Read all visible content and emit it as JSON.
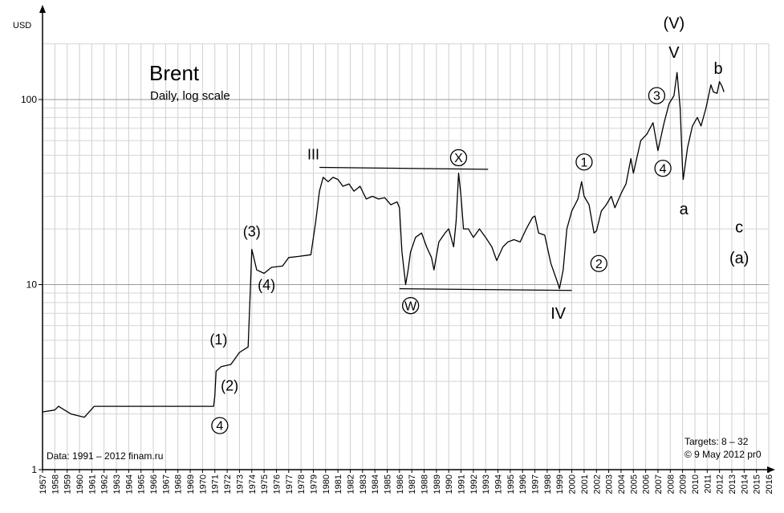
{
  "chart_data": {
    "type": "line",
    "title": "Brent",
    "subtitle": "Daily, log scale",
    "ylabel": "USD",
    "yscale": "log",
    "ylim": [
      1,
      200
    ],
    "xlim": [
      1957,
      2016
    ],
    "y_ticks": [
      1,
      10,
      100
    ],
    "x_ticks": [
      "1957",
      "1958",
      "1959",
      "1960",
      "1961",
      "1962",
      "1963",
      "1964",
      "1965",
      "1966",
      "1967",
      "1968",
      "1969",
      "1970",
      "1971",
      "1972",
      "1973",
      "1974",
      "1975",
      "1976",
      "1977",
      "1978",
      "1979",
      "1980",
      "1981",
      "1982",
      "1983",
      "1984",
      "1985",
      "1986",
      "1987",
      "1988",
      "1989",
      "1990",
      "1991",
      "1992",
      "1993",
      "1994",
      "1995",
      "1996",
      "1997",
      "1998",
      "1999",
      "2000",
      "2001",
      "2002",
      "2003",
      "2004",
      "2005",
      "2006",
      "2007",
      "2008",
      "2009",
      "2010",
      "2011",
      "2012",
      "2013",
      "2014",
      "2015",
      "2016"
    ],
    "grid": true,
    "series": [
      {
        "color": "#000000",
        "points": [
          [
            1957.0,
            2.05
          ],
          [
            1958.0,
            2.1
          ],
          [
            1958.3,
            2.2
          ],
          [
            1959.3,
            2.0
          ],
          [
            1960.4,
            1.92
          ],
          [
            1961.2,
            2.2
          ],
          [
            1962.5,
            2.2
          ],
          [
            1965.0,
            2.2
          ],
          [
            1968.0,
            2.2
          ],
          [
            1970.9,
            2.2
          ],
          [
            1971.0,
            2.5
          ],
          [
            1971.1,
            3.4
          ],
          [
            1971.5,
            3.6
          ],
          [
            1972.3,
            3.7
          ],
          [
            1973.0,
            4.3
          ],
          [
            1973.7,
            4.6
          ],
          [
            1973.9,
            10.0
          ],
          [
            1974.0,
            15.5
          ],
          [
            1974.4,
            12.0
          ],
          [
            1975.0,
            11.5
          ],
          [
            1975.6,
            12.4
          ],
          [
            1976.5,
            12.6
          ],
          [
            1977.0,
            14.0
          ],
          [
            1977.8,
            14.2
          ],
          [
            1978.8,
            14.5
          ],
          [
            1979.2,
            22.0
          ],
          [
            1979.5,
            32.0
          ],
          [
            1979.8,
            38.0
          ],
          [
            1980.2,
            36.0
          ],
          [
            1980.6,
            38.0
          ],
          [
            1981.0,
            37.0
          ],
          [
            1981.4,
            34.0
          ],
          [
            1981.9,
            35.0
          ],
          [
            1982.3,
            32.0
          ],
          [
            1982.8,
            34.0
          ],
          [
            1983.3,
            29.0
          ],
          [
            1983.8,
            30.0
          ],
          [
            1984.3,
            29.0
          ],
          [
            1984.8,
            29.5
          ],
          [
            1985.3,
            27.0
          ],
          [
            1985.8,
            28.0
          ],
          [
            1986.0,
            26.0
          ],
          [
            1986.2,
            15.0
          ],
          [
            1986.5,
            10.0
          ],
          [
            1986.7,
            12.0
          ],
          [
            1986.9,
            15.0
          ],
          [
            1987.3,
            18.0
          ],
          [
            1987.8,
            19.0
          ],
          [
            1988.2,
            16.0
          ],
          [
            1988.6,
            14.0
          ],
          [
            1988.8,
            12.0
          ],
          [
            1989.2,
            17.0
          ],
          [
            1989.7,
            19.0
          ],
          [
            1990.0,
            20.0
          ],
          [
            1990.4,
            16.0
          ],
          [
            1990.6,
            22.0
          ],
          [
            1990.8,
            40.0
          ],
          [
            1991.0,
            30.0
          ],
          [
            1991.2,
            20.0
          ],
          [
            1991.6,
            20.0
          ],
          [
            1992.0,
            18.0
          ],
          [
            1992.5,
            20.0
          ],
          [
            1993.0,
            18.0
          ],
          [
            1993.5,
            16.0
          ],
          [
            1993.9,
            13.5
          ],
          [
            1994.4,
            16.0
          ],
          [
            1994.8,
            17.0
          ],
          [
            1995.3,
            17.5
          ],
          [
            1995.8,
            17.0
          ],
          [
            1996.3,
            20.0
          ],
          [
            1996.8,
            23.0
          ],
          [
            1997.0,
            23.5
          ],
          [
            1997.3,
            19.0
          ],
          [
            1997.8,
            18.5
          ],
          [
            1998.3,
            13.0
          ],
          [
            1998.9,
            10.0
          ],
          [
            1999.0,
            9.5
          ],
          [
            1999.3,
            12.0
          ],
          [
            1999.6,
            20.0
          ],
          [
            2000.0,
            25.0
          ],
          [
            2000.5,
            29.0
          ],
          [
            2000.8,
            36.0
          ],
          [
            2001.0,
            30.0
          ],
          [
            2001.4,
            27.0
          ],
          [
            2001.8,
            19.0
          ],
          [
            2002.0,
            19.5
          ],
          [
            2002.4,
            25.0
          ],
          [
            2002.8,
            27.0
          ],
          [
            2003.2,
            30.0
          ],
          [
            2003.5,
            26.0
          ],
          [
            2004.0,
            31.0
          ],
          [
            2004.4,
            35.0
          ],
          [
            2004.8,
            48.0
          ],
          [
            2005.0,
            40.0
          ],
          [
            2005.6,
            60.0
          ],
          [
            2006.1,
            65.0
          ],
          [
            2006.6,
            75.0
          ],
          [
            2007.0,
            53.0
          ],
          [
            2007.5,
            75.0
          ],
          [
            2007.9,
            95.0
          ],
          [
            2008.3,
            105.0
          ],
          [
            2008.55,
            140.0
          ],
          [
            2008.8,
            90.0
          ],
          [
            2009.0,
            42.0
          ],
          [
            2009.05,
            37.0
          ],
          [
            2009.4,
            55.0
          ],
          [
            2009.8,
            72.0
          ],
          [
            2010.2,
            80.0
          ],
          [
            2010.5,
            72.0
          ],
          [
            2010.9,
            90.0
          ],
          [
            2011.3,
            120.0
          ],
          [
            2011.5,
            110.0
          ],
          [
            2011.8,
            108.0
          ],
          [
            2012.0,
            125.0
          ],
          [
            2012.2,
            118.0
          ],
          [
            2012.36,
            110.0
          ]
        ]
      }
    ],
    "wave_lines": [
      {
        "x": [
          1979.5,
          1993.2
        ],
        "y": [
          43,
          42
        ]
      },
      {
        "x": [
          1986.0,
          2000.0
        ],
        "y": [
          9.5,
          9.3
        ]
      }
    ],
    "annotations": [
      {
        "text": "(1)",
        "x": 1971.3,
        "y": 5.05,
        "circled": false,
        "size": 18
      },
      {
        "text": "(2)",
        "x": 1972.2,
        "y": 2.85,
        "circled": false,
        "size": 18
      },
      {
        "text": "4",
        "x": 1971.4,
        "y": 1.73,
        "circled": true,
        "size": 16
      },
      {
        "text": "(3)",
        "x": 1974.0,
        "y": 19.4,
        "circled": false,
        "size": 18
      },
      {
        "text": "(4)",
        "x": 1975.2,
        "y": 10.0,
        "circled": false,
        "size": 18
      },
      {
        "text": "III",
        "x": 1979.0,
        "y": 50.5,
        "circled": false,
        "size": 18
      },
      {
        "text": "X",
        "x": 1990.8,
        "y": 48.5,
        "circled": true,
        "size": 16
      },
      {
        "text": "W",
        "x": 1986.9,
        "y": 7.7,
        "circled": true,
        "size": 16
      },
      {
        "text": "IV",
        "x": 1998.9,
        "y": 7.0,
        "circled": false,
        "size": 20
      },
      {
        "text": "1",
        "x": 2001.0,
        "y": 46.0,
        "circled": true,
        "size": 16
      },
      {
        "text": "2",
        "x": 2002.2,
        "y": 13.0,
        "circled": true,
        "size": 16
      },
      {
        "text": "3",
        "x": 2006.9,
        "y": 105.0,
        "circled": true,
        "size": 16
      },
      {
        "text": "4",
        "x": 2007.4,
        "y": 42.5,
        "circled": true,
        "size": 16
      },
      {
        "text": "(V)",
        "x": 2008.3,
        "y": 260.0,
        "circled": false,
        "size": 20
      },
      {
        "text": "V",
        "x": 2008.3,
        "y": 180.0,
        "circled": false,
        "size": 20
      },
      {
        "text": "a",
        "x": 2009.1,
        "y": 25.7,
        "circled": false,
        "size": 20
      },
      {
        "text": "b",
        "x": 2011.9,
        "y": 148.0,
        "circled": false,
        "size": 20
      },
      {
        "text": "c",
        "x": 2013.6,
        "y": 20.5,
        "circled": false,
        "size": 20
      },
      {
        "text": "(a)",
        "x": 2013.6,
        "y": 14.0,
        "circled": false,
        "size": 20
      }
    ]
  },
  "footer": {
    "source": "Data: 1991 – 2012 finam.ru",
    "targets": "Targets: 8 – 32",
    "copyright": "© 9 May 2012 pr0"
  }
}
